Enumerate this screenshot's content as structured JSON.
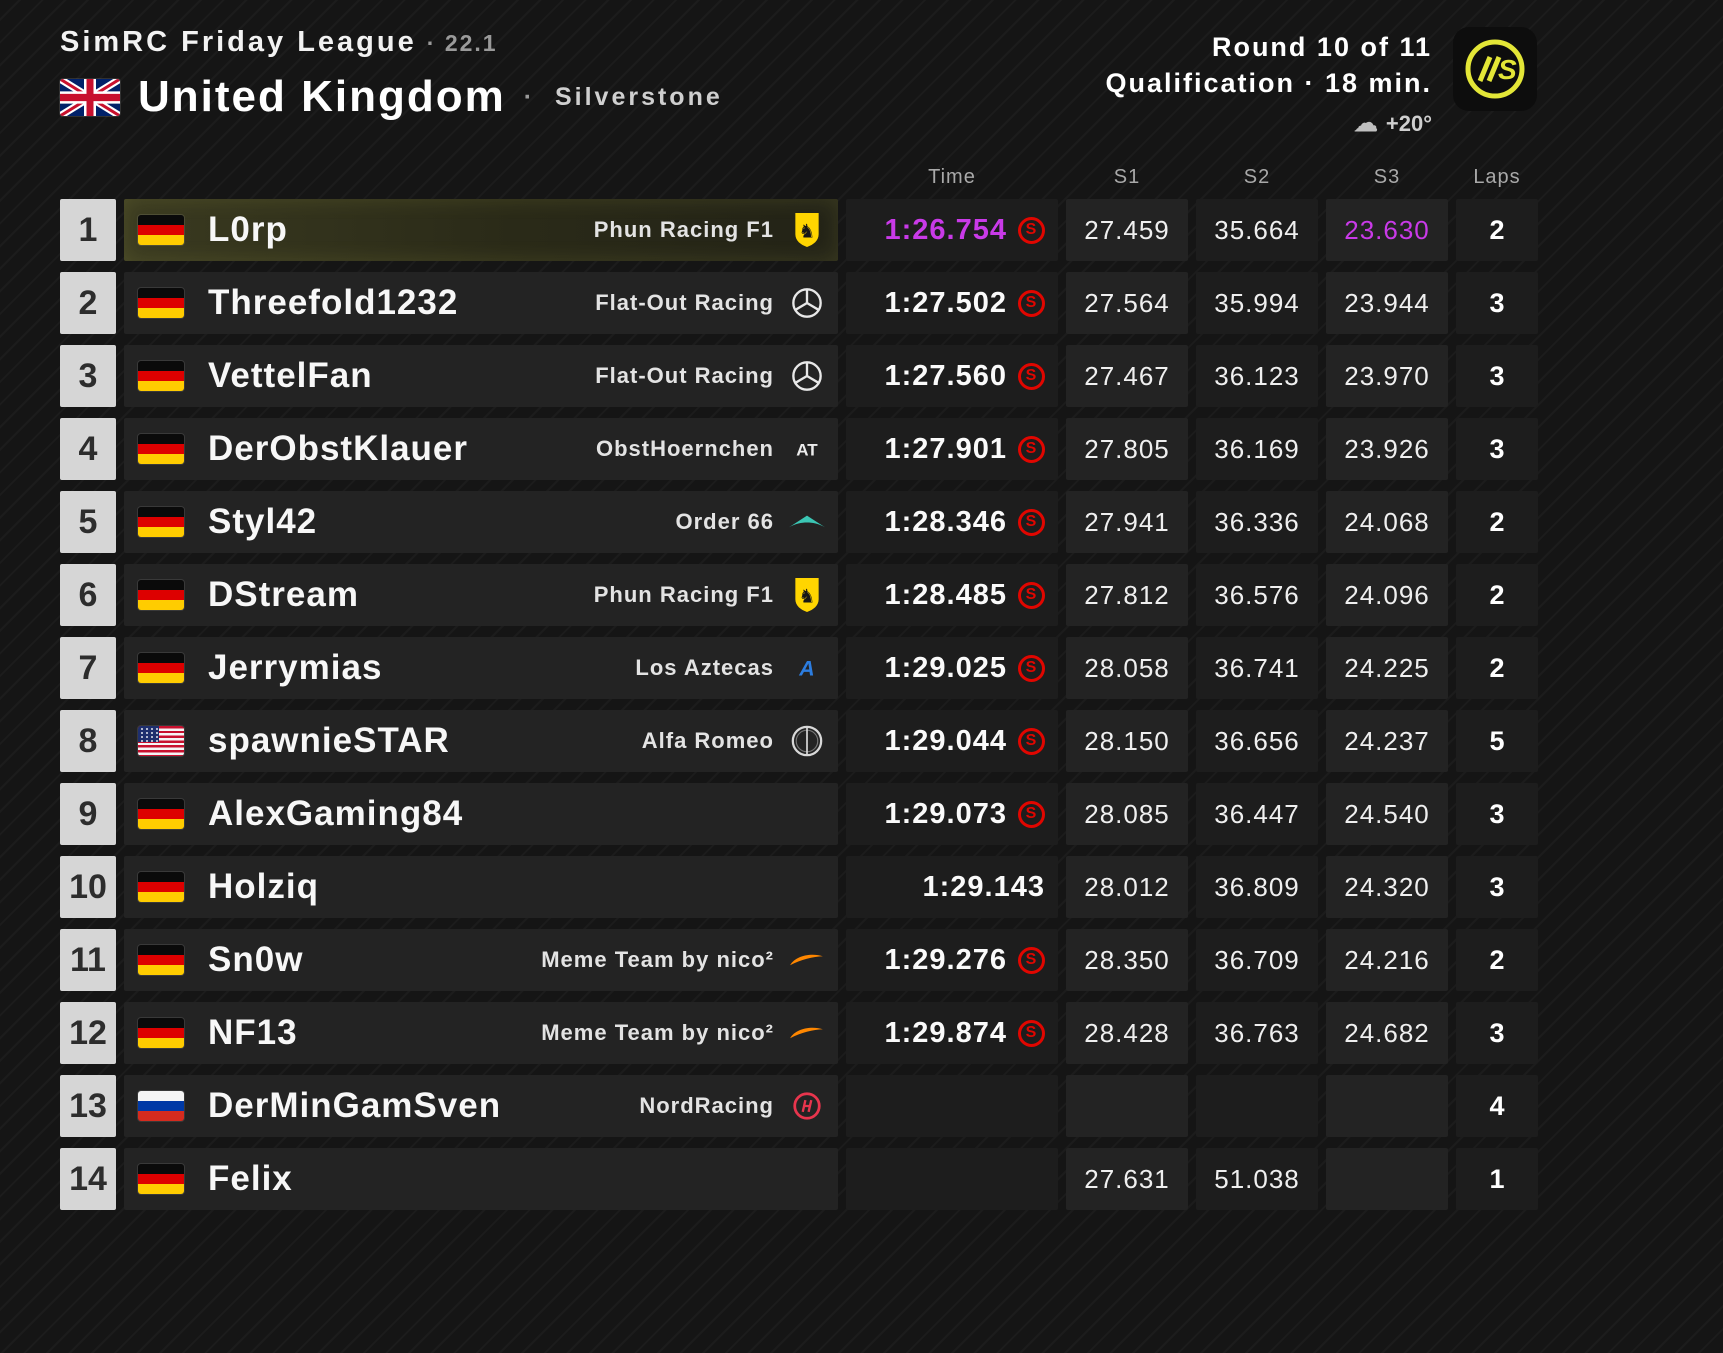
{
  "header": {
    "league": "SimRC Friday League",
    "separator": "·",
    "version": "22.1",
    "country": "United Kingdom",
    "track": "Silverstone",
    "round": "Round 10 of 11",
    "session": "Qualification · 18 min.",
    "temperature": "+20°"
  },
  "table": {
    "soft_symbol": "S",
    "columns": {
      "time": "Time",
      "s1": "S1",
      "s2": "S2",
      "s3": "S3",
      "laps": "Laps"
    },
    "rows": [
      {
        "pos": "1",
        "flag": "de",
        "driver": "L0rp",
        "team": "Phun Racing F1",
        "team_logo": "ferrari",
        "time": "1:26.754",
        "soft_tyre": true,
        "s1": "27.459",
        "s2": "35.664",
        "s3": "23.630",
        "laps": "2",
        "highlight": true,
        "time_fastest": true,
        "s3_fastest": true
      },
      {
        "pos": "2",
        "flag": "de",
        "driver": "Threefold1232",
        "team": "Flat-Out Racing",
        "team_logo": "mercedes",
        "time": "1:27.502",
        "soft_tyre": true,
        "s1": "27.564",
        "s2": "35.994",
        "s3": "23.944",
        "laps": "3"
      },
      {
        "pos": "3",
        "flag": "de",
        "driver": "VettelFan",
        "team": "Flat-Out Racing",
        "team_logo": "mercedes",
        "time": "1:27.560",
        "soft_tyre": true,
        "s1": "27.467",
        "s2": "36.123",
        "s3": "23.970",
        "laps": "3"
      },
      {
        "pos": "4",
        "flag": "de",
        "driver": "DerObstKlauer",
        "team": "ObstHoernchen",
        "team_logo": "alphatauri",
        "time": "1:27.901",
        "soft_tyre": true,
        "s1": "27.805",
        "s2": "36.169",
        "s3": "23.926",
        "laps": "3"
      },
      {
        "pos": "5",
        "flag": "de",
        "driver": "Styl42",
        "team": "Order 66",
        "team_logo": "aston-martin",
        "time": "1:28.346",
        "soft_tyre": true,
        "s1": "27.941",
        "s2": "36.336",
        "s3": "24.068",
        "laps": "2"
      },
      {
        "pos": "6",
        "flag": "de",
        "driver": "DStream",
        "team": "Phun Racing F1",
        "team_logo": "ferrari",
        "time": "1:28.485",
        "soft_tyre": true,
        "s1": "27.812",
        "s2": "36.576",
        "s3": "24.096",
        "laps": "2"
      },
      {
        "pos": "7",
        "flag": "de",
        "driver": "Jerrymias",
        "team": "Los Aztecas",
        "team_logo": "alpine",
        "time": "1:29.025",
        "soft_tyre": true,
        "s1": "28.058",
        "s2": "36.741",
        "s3": "24.225",
        "laps": "2"
      },
      {
        "pos": "8",
        "flag": "us",
        "driver": "spawnieSTAR",
        "team": "Alfa Romeo",
        "team_logo": "alfa-romeo",
        "time": "1:29.044",
        "soft_tyre": true,
        "s1": "28.150",
        "s2": "36.656",
        "s3": "24.237",
        "laps": "5"
      },
      {
        "pos": "9",
        "flag": "de",
        "driver": "AlexGaming84",
        "team": "",
        "time": "1:29.073",
        "soft_tyre": true,
        "s1": "28.085",
        "s2": "36.447",
        "s3": "24.540",
        "laps": "3"
      },
      {
        "pos": "10",
        "flag": "de",
        "driver": "Holziq",
        "team": "",
        "time": "1:29.143",
        "soft_tyre": false,
        "s1": "28.012",
        "s2": "36.809",
        "s3": "24.320",
        "laps": "3"
      },
      {
        "pos": "11",
        "flag": "de",
        "driver": "Sn0w",
        "team": "Meme Team by nico²",
        "team_logo": "mclaren",
        "time": "1:29.276",
        "soft_tyre": true,
        "s1": "28.350",
        "s2": "36.709",
        "s3": "24.216",
        "laps": "2"
      },
      {
        "pos": "12",
        "flag": "de",
        "driver": "NF13",
        "team": "Meme Team by nico²",
        "team_logo": "mclaren",
        "time": "1:29.874",
        "soft_tyre": true,
        "s1": "28.428",
        "s2": "36.763",
        "s3": "24.682",
        "laps": "3"
      },
      {
        "pos": "13",
        "flag": "ru",
        "driver": "DerMinGamSven",
        "team": "NordRacing",
        "team_logo": "haas",
        "time": "",
        "soft_tyre": false,
        "s1": "",
        "s2": "",
        "s3": "",
        "laps": "4"
      },
      {
        "pos": "14",
        "flag": "de",
        "driver": "Felix",
        "team": "",
        "time": "",
        "soft_tyre": false,
        "s1": "27.631",
        "s2": "51.038",
        "s3": "",
        "laps": "1"
      }
    ]
  }
}
